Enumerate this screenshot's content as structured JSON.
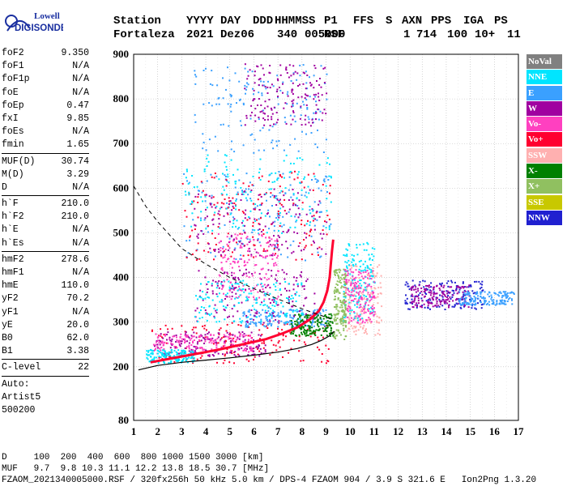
{
  "brand": {
    "line1": "Lowell",
    "line2": "DIGISONDE"
  },
  "header": {
    "labels": [
      "Station",
      "YYYY DAY",
      "DDD",
      "HHMMSS",
      "P1",
      "FFS",
      "S",
      "AXN",
      "PPS",
      "IGA",
      "PS"
    ],
    "values": [
      "Fortaleza",
      "2021 Dez06",
      "340",
      "005000",
      "RSF",
      "",
      "1",
      "714",
      "100",
      "10+",
      "11"
    ]
  },
  "params": [
    {
      "type": "row",
      "name": "foF2",
      "value": "9.350"
    },
    {
      "type": "row",
      "name": "foF1",
      "value": "N/A"
    },
    {
      "type": "row",
      "name": "foF1p",
      "value": "N/A"
    },
    {
      "type": "row",
      "name": "foE",
      "value": "N/A"
    },
    {
      "type": "row",
      "name": "foEp",
      "value": "0.47"
    },
    {
      "type": "row",
      "name": "fxI",
      "value": "9.85"
    },
    {
      "type": "row",
      "name": "foEs",
      "value": "N/A"
    },
    {
      "type": "row",
      "name": "fmin",
      "value": "1.65"
    },
    {
      "type": "sep"
    },
    {
      "type": "row",
      "name": "MUF(D)",
      "value": "30.74"
    },
    {
      "type": "row",
      "name": "M(D)",
      "value": "3.29"
    },
    {
      "type": "row",
      "name": "D",
      "value": "N/A"
    },
    {
      "type": "sep"
    },
    {
      "type": "row",
      "name": "h`F",
      "value": "210.0"
    },
    {
      "type": "row",
      "name": "h`F2",
      "value": "210.0"
    },
    {
      "type": "row",
      "name": "h`E",
      "value": "N/A"
    },
    {
      "type": "row",
      "name": "h`Es",
      "value": "N/A"
    },
    {
      "type": "sep"
    },
    {
      "type": "row",
      "name": "hmF2",
      "value": "278.6"
    },
    {
      "type": "row",
      "name": "hmF1",
      "value": "N/A"
    },
    {
      "type": "row",
      "name": "hmE",
      "value": "110.0"
    },
    {
      "type": "row",
      "name": "yF2",
      "value": "70.2"
    },
    {
      "type": "row",
      "name": "yF1",
      "value": "N/A"
    },
    {
      "type": "row",
      "name": "yE",
      "value": "20.0"
    },
    {
      "type": "row",
      "name": "B0",
      "value": "62.0"
    },
    {
      "type": "row",
      "name": "B1",
      "value": "3.38"
    },
    {
      "type": "sep"
    },
    {
      "type": "row",
      "name": "C-level",
      "value": "22"
    },
    {
      "type": "sep"
    },
    {
      "type": "text",
      "text": "Auto:"
    },
    {
      "type": "text",
      "text": "Artist5"
    },
    {
      "type": "text",
      "text": "500200"
    }
  ],
  "legend": [
    {
      "label": "NoVal",
      "color": "#808080"
    },
    {
      "label": "NNE",
      "color": "#00e5ff"
    },
    {
      "label": "E",
      "color": "#3aa0ff"
    },
    {
      "label": "W",
      "color": "#a000a0"
    },
    {
      "label": "Vo-",
      "color": "#ff40c0"
    },
    {
      "label": "Vo+",
      "color": "#ff0030"
    },
    {
      "label": "SSW",
      "color": "#ffb0b0"
    },
    {
      "label": "X-",
      "color": "#008000"
    },
    {
      "label": "X+",
      "color": "#90c060"
    },
    {
      "label": "SSE",
      "color": "#c8c800"
    },
    {
      "label": "NNW",
      "color": "#2020d0"
    }
  ],
  "footer": {
    "line1": "D     100  200  400  600  800 1000 1500 3000 [km]",
    "line2": "MUF   9.7  9.8 10.3 11.1 12.2 13.8 18.5 30.7 [MHz]",
    "line3": "FZAOM_2021340005000.RSF / 320fx256h 50 kHz 5.0 km / DPS-4 FZAOM 904 / 3.9 S 321.6 E   Ion2Png 1.3.20"
  },
  "chart_data": {
    "type": "scatter",
    "xlim": [
      1,
      17
    ],
    "ylim": [
      80,
      900
    ],
    "xticks": [
      1,
      2,
      3,
      4,
      5,
      6,
      7,
      8,
      9,
      10,
      11,
      12,
      13,
      14,
      15,
      16,
      17
    ],
    "yticks": [
      80,
      200,
      300,
      400,
      500,
      600,
      700,
      800,
      900
    ],
    "grid": true,
    "legend_position": "right",
    "point_clusters": [
      {
        "color": "#ff0030",
        "x": [
          1.7,
          9.2
        ],
        "y": [
          210,
          300
        ]
      },
      {
        "color": "#a000a0",
        "x": [
          1.8,
          6.5
        ],
        "y": [
          225,
          280
        ]
      },
      {
        "color": "#ff40c0",
        "x": [
          1.8,
          6.0
        ],
        "y": [
          235,
          275
        ]
      },
      {
        "color": "#3aa0ff",
        "x": [
          5.5,
          9.0
        ],
        "y": [
          290,
          330
        ]
      },
      {
        "color": "#00e5ff",
        "x": [
          1.5,
          3.5
        ],
        "y": [
          210,
          240
        ]
      },
      {
        "color": "#008000",
        "x": [
          7.5,
          9.3
        ],
        "y": [
          270,
          320
        ]
      },
      {
        "color": "#3aa0ff",
        "x": [
          3.0,
          9.2
        ],
        "y": [
          440,
          640
        ]
      },
      {
        "color": "#ff0030",
        "x": [
          3.0,
          9.2
        ],
        "y": [
          440,
          640
        ]
      },
      {
        "color": "#a000a0",
        "x": [
          3.5,
          9.0
        ],
        "y": [
          450,
          600
        ]
      },
      {
        "color": "#00e5ff",
        "x": [
          3.0,
          9.2
        ],
        "y": [
          500,
          680
        ]
      },
      {
        "color": "#ff40c0",
        "x": [
          4.5,
          7.0
        ],
        "y": [
          350,
          500
        ]
      },
      {
        "color": "#a000a0",
        "x": [
          3.5,
          8.5
        ],
        "y": [
          300,
          420
        ]
      },
      {
        "color": "#00e5ff",
        "x": [
          3.5,
          8.0
        ],
        "y": [
          300,
          400
        ]
      },
      {
        "color": "#3aa0ff",
        "x": [
          3.5,
          9.0
        ],
        "y": [
          680,
          880
        ]
      },
      {
        "color": "#a000a0",
        "x": [
          5.5,
          9.0
        ],
        "y": [
          740,
          880
        ]
      },
      {
        "color": "#ffb0b0",
        "x": [
          9.7,
          11.3
        ],
        "y": [
          270,
          430
        ]
      },
      {
        "color": "#00e5ff",
        "x": [
          9.7,
          11.0
        ],
        "y": [
          300,
          480
        ]
      },
      {
        "color": "#ff40c0",
        "x": [
          9.7,
          11.0
        ],
        "y": [
          300,
          420
        ]
      },
      {
        "color": "#90c060",
        "x": [
          9.3,
          9.8
        ],
        "y": [
          260,
          420
        ]
      },
      {
        "color": "#2020d0",
        "x": [
          12.2,
          15.5
        ],
        "y": [
          330,
          395
        ]
      },
      {
        "color": "#a000a0",
        "x": [
          12.5,
          15.0
        ],
        "y": [
          335,
          385
        ]
      },
      {
        "color": "#3aa0ff",
        "x": [
          14.5,
          16.8
        ],
        "y": [
          340,
          370
        ]
      }
    ],
    "trace_data": {
      "x": [
        1.7,
        2.5,
        3.5,
        4.5,
        5.5,
        6.5,
        7.2,
        7.8,
        8.3,
        8.7,
        8.9,
        9.05,
        9.15,
        9.2,
        9.25,
        9.3
      ],
      "y": [
        210,
        218,
        228,
        238,
        250,
        262,
        275,
        288,
        305,
        325,
        345,
        370,
        400,
        430,
        460,
        485
      ]
    },
    "trace_profile": {
      "x": [
        1.2,
        2.0,
        3.0,
        4.0,
        5.0,
        6.0,
        7.0,
        7.8,
        8.4,
        8.8,
        9.1,
        9.3,
        9.35
      ],
      "y": [
        193,
        203,
        210,
        215,
        220,
        226,
        233,
        241,
        250,
        259,
        268,
        278,
        278.6
      ]
    },
    "trace_muf": {
      "x": [
        1.0,
        1.5,
        2.0,
        2.5,
        3.0,
        4.0,
        5.0,
        6.0,
        7.0,
        8.0,
        8.8,
        9.3
      ],
      "y": [
        605,
        560,
        525,
        495,
        465,
        430,
        400,
        375,
        352,
        330,
        315,
        305
      ]
    }
  }
}
